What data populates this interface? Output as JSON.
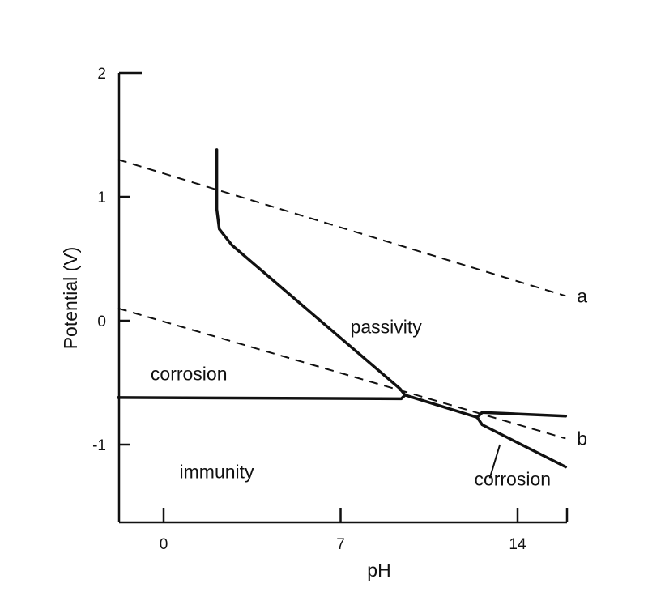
{
  "chart_data": {
    "type": "diagram",
    "title": "",
    "xlabel": "pH",
    "ylabel": "Potential (V)",
    "xlim": [
      -1.8,
      15.9
    ],
    "ylim": [
      -1.6,
      2.0
    ],
    "x_ticks": [
      {
        "value": 0,
        "label": "0"
      },
      {
        "value": 7,
        "label": "7"
      },
      {
        "value": 14,
        "label": "14"
      }
    ],
    "y_ticks": [
      {
        "value": 2,
        "label": "2"
      },
      {
        "value": 1,
        "label": "1"
      },
      {
        "value": 0,
        "label": "0"
      },
      {
        "value": -1,
        "label": "-1"
      }
    ],
    "dashed_lines": [
      {
        "label": "a",
        "points": [
          [
            -1.8,
            1.3
          ],
          [
            15.9,
            0.2
          ]
        ]
      },
      {
        "label": "b",
        "points": [
          [
            -1.8,
            0.1
          ],
          [
            15.9,
            -0.95
          ]
        ]
      }
    ],
    "boundaries": [
      {
        "points": [
          [
            2.1,
            1.38
          ],
          [
            2.1,
            0.9
          ],
          [
            2.2,
            0.74
          ],
          [
            2.7,
            0.61
          ],
          [
            9.35,
            -0.55
          ],
          [
            9.55,
            -0.6
          ]
        ]
      },
      {
        "points": [
          [
            -1.8,
            -0.62
          ],
          [
            9.4,
            -0.63
          ],
          [
            9.55,
            -0.6
          ],
          [
            12.4,
            -0.78
          ],
          [
            12.6,
            -0.74
          ],
          [
            15.9,
            -0.77
          ]
        ]
      },
      {
        "points": [
          [
            12.6,
            -0.74
          ],
          [
            12.4,
            -0.78
          ],
          [
            12.6,
            -0.84
          ],
          [
            15.9,
            -1.18
          ]
        ]
      }
    ],
    "label_pointer": [
      [
        13.3,
        -1.0
      ],
      [
        12.9,
        -1.27
      ]
    ],
    "regions": [
      {
        "text": "passivity",
        "x": 8.8,
        "y": -0.1
      },
      {
        "text": "corrosion",
        "x": 1.0,
        "y": -0.48
      },
      {
        "text": "immunity",
        "x": 2.1,
        "y": -1.27
      },
      {
        "text": "corrosion",
        "x": 13.8,
        "y": -1.33
      }
    ]
  }
}
